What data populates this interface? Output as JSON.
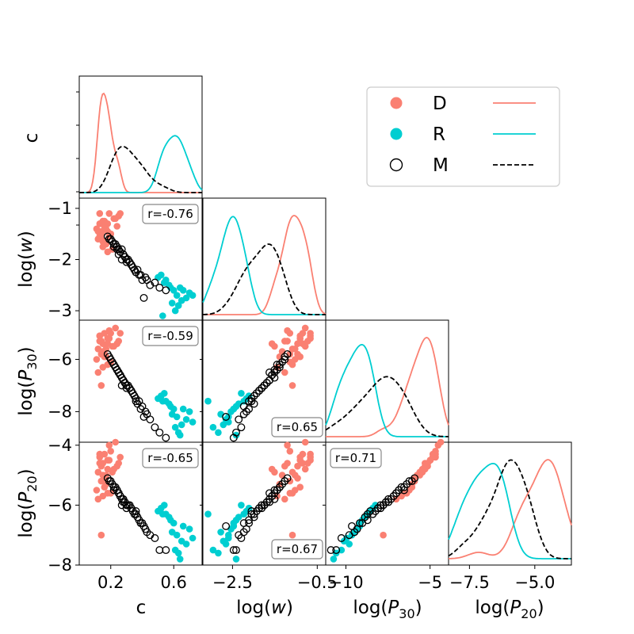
{
  "chart_data": {
    "type": "scatter",
    "title": "",
    "variables": [
      {
        "key": "c",
        "label": "c",
        "range": [
          0.0,
          0.78
        ],
        "ticks": [
          0.2,
          0.6
        ],
        "tick_labels": [
          "0.2",
          "0.6"
        ]
      },
      {
        "key": "logw",
        "label_main": "log(",
        "label_italic": "w",
        "label_tail": ")",
        "range": [
          -3.2,
          -0.8
        ],
        "ticks": [
          -3,
          -2,
          -1
        ],
        "tick_labels": [
          "−3",
          "−2",
          "−1"
        ],
        "xticks": [
          -2.5,
          -0.5
        ],
        "xtick_labels": [
          "−2.5",
          "−0.5"
        ]
      },
      {
        "key": "logP30",
        "label_main": "log(",
        "label_italic": "P",
        "label_sub": "30",
        "label_tail": ")",
        "range": [
          -9.2,
          -4.5
        ],
        "ticks": [
          -8,
          -6
        ],
        "tick_labels": [
          "−8",
          "−6"
        ],
        "xticks": [
          -10,
          -5
        ],
        "xtick_labels": [
          "−10",
          "−5"
        ]
      },
      {
        "key": "logP20",
        "label_main": "log(",
        "label_italic": "P",
        "label_sub": "20",
        "label_tail": ")",
        "range": [
          -8.0,
          -3.9
        ],
        "ticks": [
          -8,
          -6,
          -4
        ],
        "tick_labels": [
          "−8",
          "−6",
          "−4"
        ],
        "xticks": [
          -7.5,
          -5.0
        ],
        "xtick_labels": [
          "−7.5",
          "−5.0"
        ]
      }
    ],
    "correlations": [
      {
        "pair": "c-logw",
        "label": "r=-0.76"
      },
      {
        "pair": "c-logP30",
        "label": "r=-0.59"
      },
      {
        "pair": "c-logP20",
        "label": "r=-0.65"
      },
      {
        "pair": "logw-logP30",
        "label": "r=0.65"
      },
      {
        "pair": "logw-logP20",
        "label": "r=0.67"
      },
      {
        "pair": "logP30-logP20",
        "label": "r=0.71"
      }
    ],
    "series": [
      {
        "name": "D",
        "color": "#fa8072",
        "marker": "filled",
        "c": [
          0.13,
          0.15,
          0.18,
          0.12,
          0.2,
          0.16,
          0.14,
          0.22,
          0.17,
          0.19,
          0.11,
          0.25,
          0.15,
          0.13,
          0.18,
          0.21,
          0.16,
          0.14,
          0.24,
          0.12,
          0.19,
          0.17,
          0.15,
          0.23,
          0.13,
          0.16,
          0.2,
          0.18,
          0.14,
          0.26
        ],
        "logw": [
          -1.1,
          -1.25,
          -1.3,
          -1.45,
          -1.5,
          -1.35,
          -1.6,
          -1.2,
          -1.7,
          -1.55,
          -1.4,
          -1.15,
          -1.65,
          -1.3,
          -1.45,
          -1.8,
          -1.25,
          -1.5,
          -1.35,
          -1.6,
          -1.1,
          -1.4,
          -1.75,
          -1.2,
          -1.55,
          -1.3,
          -1.5,
          -1.85,
          -1.45,
          -1.1
        ],
        "logP30": [
          -5.1,
          -5.4,
          -5.2,
          -5.6,
          -5.0,
          -5.8,
          -5.3,
          -5.5,
          -5.9,
          -4.9,
          -6.0,
          -5.3,
          -5.7,
          -5.1,
          -6.2,
          -5.5,
          -5.0,
          -5.8,
          -5.4,
          -6.5,
          -5.2,
          -5.6,
          -6.3,
          -4.8,
          -5.3,
          -5.9,
          -6.1,
          -5.4,
          -7.0,
          -5.0
        ],
        "logP20": [
          -4.3,
          -4.6,
          -4.5,
          -4.9,
          -4.2,
          -5.1,
          -4.7,
          -4.8,
          -5.3,
          -4.0,
          -5.5,
          -4.6,
          -5.0,
          -4.4,
          -5.6,
          -4.9,
          -4.3,
          -5.2,
          -4.7,
          -5.8,
          -4.5,
          -5.0,
          -5.7,
          -3.9,
          -4.6,
          -5.4,
          -5.6,
          -4.8,
          -7.0,
          -4.4
        ]
      },
      {
        "name": "R",
        "color": "#00ced1",
        "marker": "filled",
        "c": [
          0.52,
          0.58,
          0.62,
          0.55,
          0.65,
          0.6,
          0.7,
          0.5,
          0.63,
          0.57,
          0.68,
          0.54,
          0.61,
          0.66,
          0.59,
          0.72,
          0.53,
          0.64
        ],
        "logw": [
          -2.3,
          -2.55,
          -2.7,
          -2.4,
          -2.8,
          -2.6,
          -2.65,
          -2.35,
          -2.9,
          -2.5,
          -2.75,
          -2.45,
          -3.0,
          -2.6,
          -2.85,
          -2.7,
          -3.1,
          -2.55
        ],
        "logP30": [
          -7.4,
          -7.8,
          -8.2,
          -7.6,
          -8.5,
          -7.9,
          -8.0,
          -7.5,
          -8.8,
          -7.7,
          -8.3,
          -7.3,
          -8.6,
          -7.9,
          -8.1,
          -8.4,
          -7.6,
          -8.9
        ],
        "logP20": [
          -6.1,
          -6.5,
          -7.0,
          -6.3,
          -7.2,
          -6.6,
          -6.8,
          -6.2,
          -7.6,
          -6.4,
          -7.3,
          -6.0,
          -7.5,
          -6.7,
          -6.9,
          -7.1,
          -6.3,
          -7.8
        ]
      },
      {
        "name": "M",
        "color": "#000000",
        "marker": "open",
        "c": [
          0.18,
          0.22,
          0.25,
          0.28,
          0.3,
          0.2,
          0.33,
          0.26,
          0.35,
          0.24,
          0.38,
          0.21,
          0.29,
          0.4,
          0.27,
          0.32,
          0.23,
          0.36,
          0.42,
          0.19,
          0.31,
          0.45,
          0.28,
          0.34,
          0.26,
          0.37,
          0.48,
          0.22,
          0.3,
          0.39,
          0.25,
          0.43,
          0.33,
          0.29,
          0.51,
          0.24,
          0.36,
          0.55,
          0.27,
          0.41
        ],
        "logw": [
          -1.55,
          -1.7,
          -1.8,
          -1.9,
          -2.0,
          -1.6,
          -2.1,
          -1.85,
          -2.2,
          -1.75,
          -2.3,
          -1.65,
          -1.95,
          -2.4,
          -1.8,
          -2.05,
          -1.7,
          -2.25,
          -2.35,
          -1.6,
          -2.0,
          -2.5,
          -1.9,
          -2.15,
          -1.85,
          -2.2,
          -2.45,
          -1.75,
          -2.05,
          -2.3,
          -1.9,
          -2.4,
          -2.1,
          -1.95,
          -2.55,
          -1.8,
          -2.25,
          -2.6,
          -2.0,
          -2.75
        ],
        "logP30": [
          -5.8,
          -6.2,
          -6.5,
          -6.8,
          -7.0,
          -6.0,
          -7.2,
          -6.6,
          -7.4,
          -6.4,
          -7.6,
          -6.1,
          -6.9,
          -7.8,
          -6.7,
          -7.1,
          -6.3,
          -7.5,
          -8.0,
          -5.9,
          -7.0,
          -8.3,
          -6.8,
          -7.3,
          -6.6,
          -7.7,
          -8.6,
          -6.2,
          -7.1,
          -7.9,
          -6.5,
          -8.1,
          -7.2,
          -6.9,
          -8.8,
          -6.4,
          -7.6,
          -9.0,
          -7.0,
          -8.2
        ],
        "logP20": [
          -5.1,
          -5.4,
          -5.6,
          -5.8,
          -6.0,
          -5.2,
          -6.1,
          -5.7,
          -6.3,
          -5.5,
          -6.5,
          -5.3,
          -5.9,
          -6.6,
          -5.8,
          -6.0,
          -5.4,
          -6.2,
          -6.8,
          -5.2,
          -6.0,
          -7.0,
          -5.9,
          -6.2,
          -5.7,
          -6.4,
          -7.1,
          -5.5,
          -6.1,
          -6.6,
          -5.6,
          -6.9,
          -6.1,
          -5.9,
          -7.5,
          -5.5,
          -6.3,
          -7.5,
          -6.0,
          -6.7
        ]
      }
    ],
    "legend": {
      "placement": "top-right",
      "entries": [
        "D",
        "R",
        "M"
      ]
    }
  }
}
